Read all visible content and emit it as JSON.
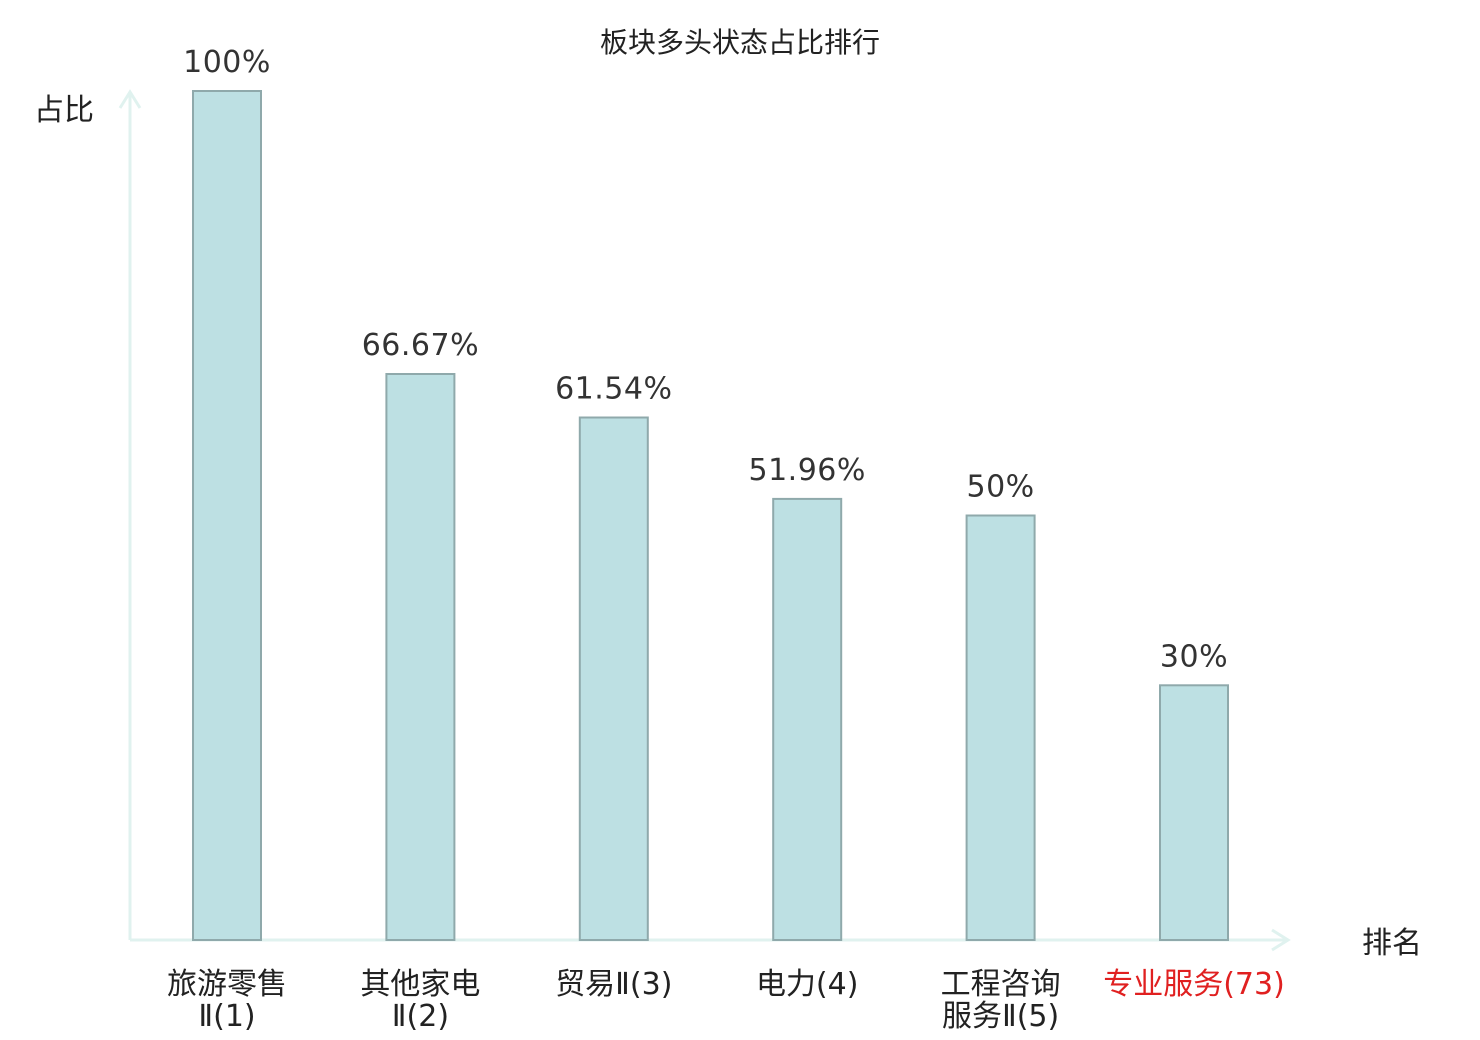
{
  "chart_data": {
    "type": "bar",
    "title": "板块多头状态占比排行",
    "ylabel": "占比",
    "xlabel": "排名",
    "ylim": [
      0,
      100
    ],
    "grid": false,
    "categories": [
      [
        "旅游零售",
        "Ⅱ(1)"
      ],
      [
        "其他家电",
        "Ⅱ(2)"
      ],
      [
        "贸易Ⅱ(3)"
      ],
      [
        "电力(4)"
      ],
      [
        "工程咨询",
        "服务Ⅱ(5)"
      ],
      [
        "专业服务(73)"
      ]
    ],
    "values": [
      100,
      66.67,
      61.54,
      51.96,
      50,
      30
    ],
    "value_labels": [
      "100%",
      "66.67%",
      "61.54%",
      "51.96%",
      "50%",
      "30%"
    ],
    "highlight_index": 5,
    "colors": {
      "bar_fill": "#bde0e3",
      "bar_stroke": "#8fa9ab",
      "axis": "#e0f2ef",
      "highlight_text": "#e02020"
    }
  }
}
